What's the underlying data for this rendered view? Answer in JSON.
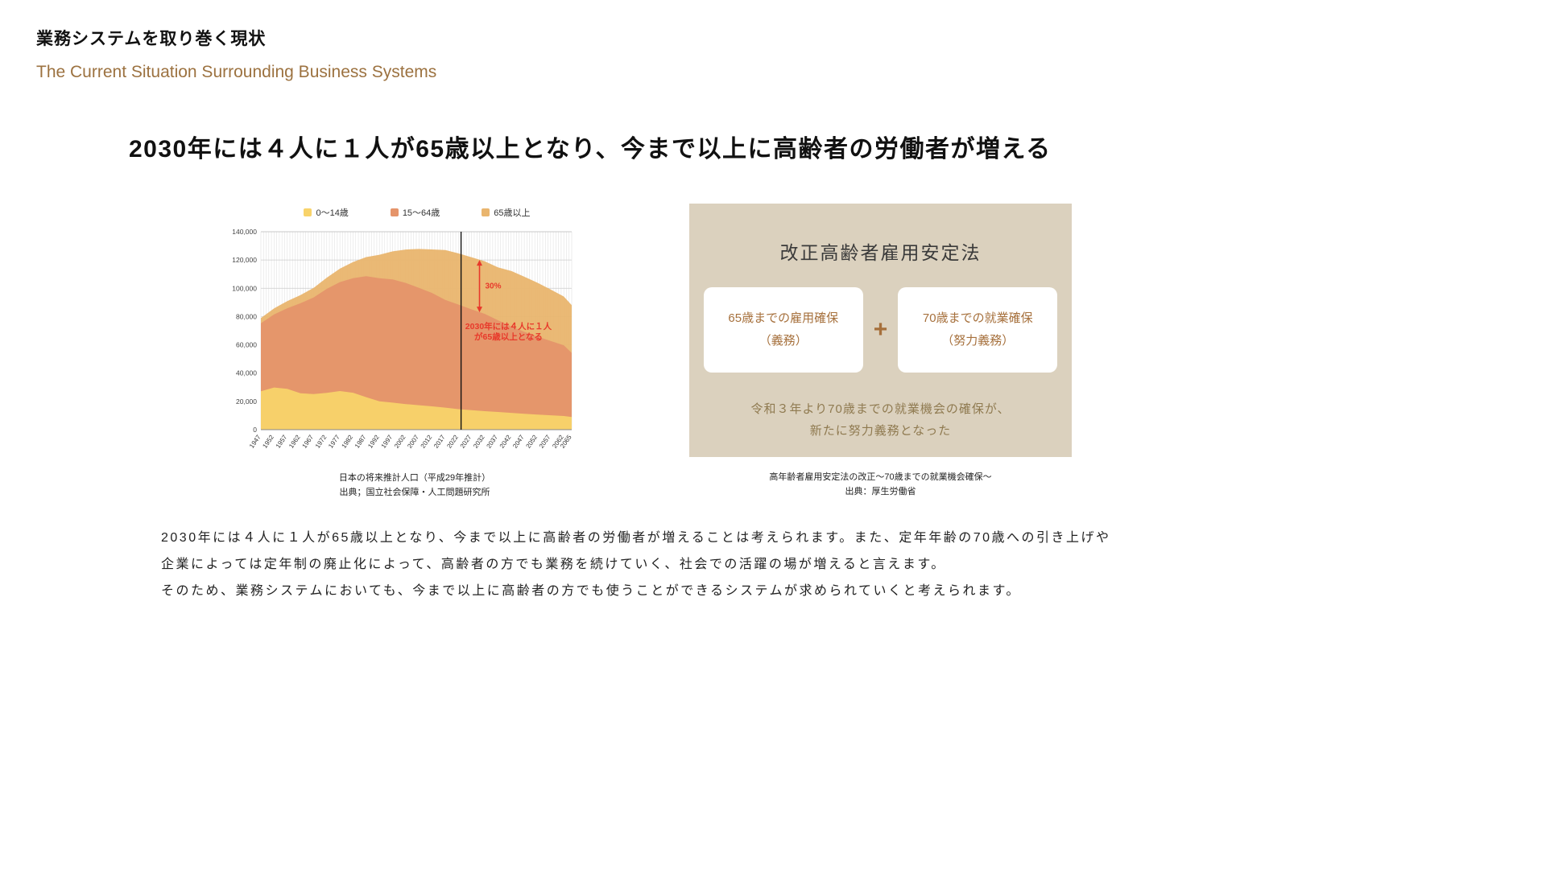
{
  "header": {
    "title_jp": "業務システムを取り巻く現状",
    "subtitle_en": "The Current Situation Surrounding Business Systems"
  },
  "headline": "2030年には４人に１人が65歳以上となり、今まで以上に高齢者の労働者が増える",
  "chart": {
    "caption": [
      "日本の将来推計人口（平成29年推計）",
      "出典；国立社会保障・人工問題研究所"
    ]
  },
  "chart_data": {
    "type": "area",
    "stacked": true,
    "x": [
      1947,
      1952,
      1957,
      1962,
      1967,
      1972,
      1977,
      1982,
      1987,
      1992,
      1997,
      2002,
      2007,
      2012,
      2017,
      2022,
      2027,
      2032,
      2037,
      2042,
      2047,
      2052,
      2057,
      2062,
      2065
    ],
    "series": [
      {
        "name": "0〜14歳",
        "color": "#f8d36a",
        "values": [
          27200,
          29800,
          28900,
          25700,
          25200,
          26000,
          27300,
          26100,
          23000,
          20100,
          19100,
          18100,
          17300,
          16500,
          15600,
          14500,
          13800,
          13100,
          12500,
          11900,
          11200,
          10700,
          10200,
          9700,
          9000
        ]
      },
      {
        "name": "15〜64歳",
        "color": "#e5946a",
        "values": [
          48100,
          51700,
          57000,
          63700,
          68300,
          73600,
          77100,
          81000,
          85500,
          87000,
          87200,
          85700,
          83000,
          80200,
          76200,
          74000,
          71300,
          68800,
          64900,
          61200,
          58000,
          55200,
          52500,
          50000,
          45300
        ]
      },
      {
        "name": "65歳以上",
        "color": "#e9b56e",
        "values": [
          3700,
          4300,
          5000,
          5800,
          6700,
          7900,
          9500,
          11500,
          13600,
          16600,
          19800,
          23600,
          27500,
          30800,
          35200,
          36200,
          36800,
          37200,
          37400,
          39200,
          39000,
          38000,
          36500,
          34500,
          33800
        ]
      }
    ],
    "ylim": [
      0,
      140000
    ],
    "ytick_step": 20000,
    "grid": true,
    "legend_position": "top",
    "current_year_line": 2023,
    "annotation": {
      "arrow_year": 2030,
      "arrow_top_value": 120000,
      "arrow_bottom_value": 83000,
      "arrow_label": "30%",
      "text_lines": [
        "2030年には４人に１人",
        "が65歳以上となる"
      ],
      "text_year": 2041,
      "text_value": 71000,
      "color": "#e8392b"
    }
  },
  "law_box": {
    "title": "改正高齢者雇用安定法",
    "cards": [
      {
        "line1": "65歳までの雇用確保",
        "line2": "（義務）"
      },
      {
        "line1": "70歳までの就業確保",
        "line2": "（努力義務）"
      }
    ],
    "plus": "+",
    "note_lines": [
      "令和３年より70歳までの就業機会の確保が、",
      "新たに努力義務となった"
    ],
    "caption": [
      "高年齢者雇用安定法の改正〜70歳までの就業機会確保〜",
      "出典：厚生労働省"
    ]
  },
  "paragraph": {
    "lines": [
      "2030年には４人に１人が65歳以上となり、今まで以上に高齢者の労働者が増えることは考えられます。また、定年年齢の70歳への引き上げや",
      "企業によっては定年制の廃止化によって、高齢者の方でも業務を続けていく、社会での活躍の場が増えると言えます。",
      "そのため、業務システムにおいても、今まで以上に高齢者の方でも使うことができるシステムが求められていくと考えられます。"
    ]
  },
  "colors": {
    "accent_brown": "#9c7240",
    "annotation_red": "#e8392b",
    "box_beige": "#dbd1be"
  }
}
